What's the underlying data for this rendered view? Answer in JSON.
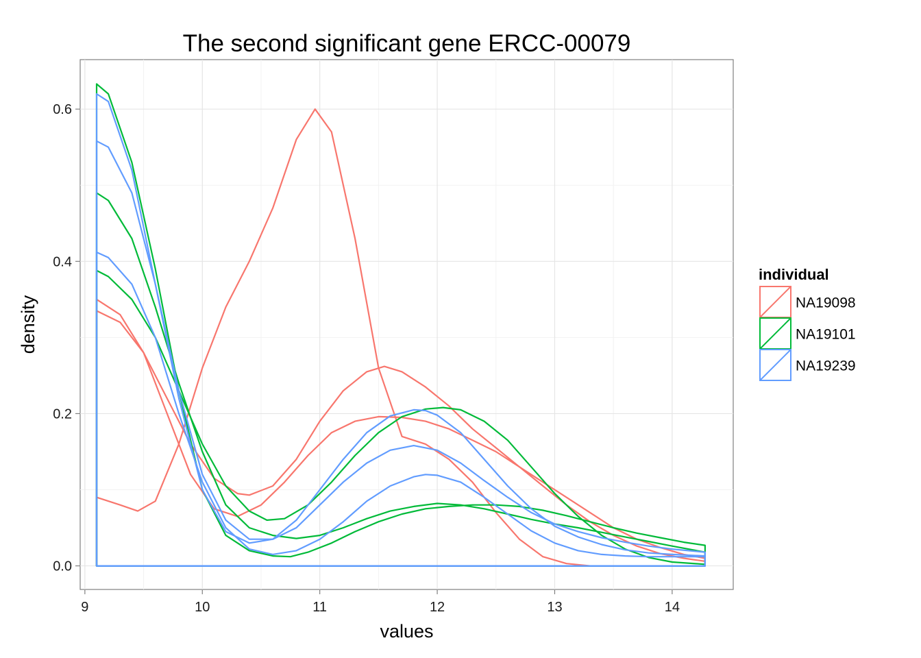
{
  "chart_data": {
    "type": "line",
    "title": "The second significant gene ERCC-00079",
    "xlabel": "values",
    "ylabel": "density",
    "xlim": [
      8.96,
      14.52
    ],
    "ylim": [
      -0.031,
      0.665
    ],
    "x_ticks": [
      9,
      10,
      11,
      12,
      13,
      14
    ],
    "x_tick_labels": [
      "9",
      "10",
      "11",
      "12",
      "13",
      "14"
    ],
    "y_ticks": [
      0.0,
      0.2,
      0.4,
      0.6
    ],
    "y_tick_labels": [
      "0.0",
      "0.2",
      "0.4",
      "0.6"
    ],
    "grid": true,
    "legend": {
      "title": "individual",
      "position": "right",
      "items": [
        {
          "label": "NA19098",
          "color": "#F8766D"
        },
        {
          "label": "NA19101",
          "color": "#00BA38"
        },
        {
          "label": "NA19239",
          "color": "#619CFF"
        }
      ]
    },
    "series": [
      {
        "group": "NA19098",
        "color": "#F8766D",
        "points": [
          [
            9.1,
            0.09
          ],
          [
            9.3,
            0.08
          ],
          [
            9.45,
            0.072
          ],
          [
            9.6,
            0.085
          ],
          [
            9.8,
            0.16
          ],
          [
            10.0,
            0.26
          ],
          [
            10.2,
            0.34
          ],
          [
            10.4,
            0.4
          ],
          [
            10.6,
            0.47
          ],
          [
            10.8,
            0.56
          ],
          [
            10.96,
            0.6
          ],
          [
            11.1,
            0.57
          ],
          [
            11.3,
            0.43
          ],
          [
            11.5,
            0.26
          ],
          [
            11.7,
            0.17
          ],
          [
            11.9,
            0.16
          ],
          [
            12.1,
            0.14
          ],
          [
            12.3,
            0.11
          ],
          [
            12.5,
            0.07
          ],
          [
            12.7,
            0.035
          ],
          [
            12.9,
            0.012
          ],
          [
            13.1,
            0.003
          ],
          [
            13.3,
            0.0
          ],
          [
            14.28,
            0.0
          ]
        ]
      },
      {
        "group": "NA19098",
        "color": "#F8766D",
        "points": [
          [
            9.1,
            0.35
          ],
          [
            9.3,
            0.33
          ],
          [
            9.5,
            0.28
          ],
          [
            9.7,
            0.2
          ],
          [
            9.9,
            0.12
          ],
          [
            10.1,
            0.075
          ],
          [
            10.3,
            0.065
          ],
          [
            10.5,
            0.08
          ],
          [
            10.7,
            0.11
          ],
          [
            10.9,
            0.145
          ],
          [
            11.1,
            0.175
          ],
          [
            11.3,
            0.19
          ],
          [
            11.5,
            0.196
          ],
          [
            11.7,
            0.195
          ],
          [
            11.9,
            0.19
          ],
          [
            12.1,
            0.18
          ],
          [
            12.3,
            0.165
          ],
          [
            12.5,
            0.15
          ],
          [
            12.7,
            0.13
          ],
          [
            12.9,
            0.11
          ],
          [
            13.1,
            0.09
          ],
          [
            13.3,
            0.07
          ],
          [
            13.5,
            0.05
          ],
          [
            13.7,
            0.035
          ],
          [
            13.9,
            0.024
          ],
          [
            14.1,
            0.015
          ],
          [
            14.28,
            0.01
          ]
        ]
      },
      {
        "group": "NA19098",
        "color": "#F8766D",
        "points": [
          [
            9.1,
            0.335
          ],
          [
            9.3,
            0.32
          ],
          [
            9.5,
            0.28
          ],
          [
            9.7,
            0.22
          ],
          [
            9.9,
            0.16
          ],
          [
            10.1,
            0.115
          ],
          [
            10.3,
            0.095
          ],
          [
            10.4,
            0.093
          ],
          [
            10.6,
            0.105
          ],
          [
            10.8,
            0.14
          ],
          [
            11.0,
            0.19
          ],
          [
            11.2,
            0.23
          ],
          [
            11.4,
            0.255
          ],
          [
            11.55,
            0.262
          ],
          [
            11.7,
            0.255
          ],
          [
            11.9,
            0.235
          ],
          [
            12.1,
            0.21
          ],
          [
            12.3,
            0.18
          ],
          [
            12.5,
            0.155
          ],
          [
            12.7,
            0.13
          ],
          [
            12.9,
            0.105
          ],
          [
            13.1,
            0.08
          ],
          [
            13.3,
            0.058
          ],
          [
            13.5,
            0.04
          ],
          [
            13.7,
            0.026
          ],
          [
            13.9,
            0.016
          ],
          [
            14.1,
            0.01
          ],
          [
            14.28,
            0.006
          ]
        ]
      },
      {
        "group": "NA19101",
        "color": "#00BA38",
        "points": [
          [
            9.1,
            0.633
          ],
          [
            9.2,
            0.62
          ],
          [
            9.4,
            0.53
          ],
          [
            9.6,
            0.39
          ],
          [
            9.8,
            0.23
          ],
          [
            10.0,
            0.1
          ],
          [
            10.2,
            0.04
          ],
          [
            10.4,
            0.02
          ],
          [
            10.6,
            0.013
          ],
          [
            10.75,
            0.012
          ],
          [
            10.9,
            0.018
          ],
          [
            11.1,
            0.03
          ],
          [
            11.3,
            0.045
          ],
          [
            11.5,
            0.058
          ],
          [
            11.7,
            0.068
          ],
          [
            11.9,
            0.075
          ],
          [
            12.1,
            0.078
          ],
          [
            12.3,
            0.08
          ],
          [
            12.5,
            0.08
          ],
          [
            12.7,
            0.078
          ],
          [
            12.9,
            0.073
          ],
          [
            13.1,
            0.066
          ],
          [
            13.3,
            0.058
          ],
          [
            13.5,
            0.05
          ],
          [
            13.7,
            0.043
          ],
          [
            13.9,
            0.037
          ],
          [
            14.1,
            0.031
          ],
          [
            14.28,
            0.027
          ]
        ]
      },
      {
        "group": "NA19101",
        "color": "#00BA38",
        "points": [
          [
            9.1,
            0.49
          ],
          [
            9.2,
            0.48
          ],
          [
            9.4,
            0.43
          ],
          [
            9.6,
            0.34
          ],
          [
            9.8,
            0.24
          ],
          [
            10.0,
            0.15
          ],
          [
            10.2,
            0.08
          ],
          [
            10.4,
            0.05
          ],
          [
            10.6,
            0.04
          ],
          [
            10.8,
            0.036
          ],
          [
            11.0,
            0.04
          ],
          [
            11.2,
            0.05
          ],
          [
            11.4,
            0.062
          ],
          [
            11.6,
            0.072
          ],
          [
            11.8,
            0.078
          ],
          [
            12.0,
            0.082
          ],
          [
            12.2,
            0.08
          ],
          [
            12.4,
            0.075
          ],
          [
            12.6,
            0.068
          ],
          [
            12.8,
            0.061
          ],
          [
            13.0,
            0.055
          ],
          [
            13.2,
            0.05
          ],
          [
            13.4,
            0.044
          ],
          [
            13.6,
            0.038
          ],
          [
            13.8,
            0.032
          ],
          [
            14.0,
            0.026
          ],
          [
            14.28,
            0.018
          ]
        ]
      },
      {
        "group": "NA19101",
        "color": "#00BA38",
        "points": [
          [
            9.1,
            0.388
          ],
          [
            9.2,
            0.38
          ],
          [
            9.4,
            0.35
          ],
          [
            9.6,
            0.3
          ],
          [
            9.8,
            0.23
          ],
          [
            10.0,
            0.16
          ],
          [
            10.2,
            0.105
          ],
          [
            10.4,
            0.072
          ],
          [
            10.55,
            0.06
          ],
          [
            10.7,
            0.062
          ],
          [
            10.9,
            0.08
          ],
          [
            11.1,
            0.11
          ],
          [
            11.3,
            0.145
          ],
          [
            11.5,
            0.175
          ],
          [
            11.7,
            0.196
          ],
          [
            11.9,
            0.206
          ],
          [
            12.05,
            0.208
          ],
          [
            12.2,
            0.205
          ],
          [
            12.4,
            0.19
          ],
          [
            12.6,
            0.165
          ],
          [
            12.8,
            0.13
          ],
          [
            13.0,
            0.095
          ],
          [
            13.2,
            0.065
          ],
          [
            13.4,
            0.04
          ],
          [
            13.6,
            0.022
          ],
          [
            13.8,
            0.011
          ],
          [
            14.0,
            0.005
          ],
          [
            14.28,
            0.002
          ]
        ]
      },
      {
        "group": "NA19239",
        "color": "#619CFF",
        "points": [
          [
            9.1,
            0.62
          ],
          [
            9.2,
            0.61
          ],
          [
            9.4,
            0.52
          ],
          [
            9.6,
            0.37
          ],
          [
            9.8,
            0.22
          ],
          [
            10.0,
            0.1
          ],
          [
            10.2,
            0.045
          ],
          [
            10.4,
            0.03
          ],
          [
            10.6,
            0.035
          ],
          [
            10.8,
            0.06
          ],
          [
            11.0,
            0.1
          ],
          [
            11.2,
            0.14
          ],
          [
            11.4,
            0.175
          ],
          [
            11.6,
            0.197
          ],
          [
            11.8,
            0.205
          ],
          [
            11.9,
            0.204
          ],
          [
            12.0,
            0.198
          ],
          [
            12.2,
            0.175
          ],
          [
            12.4,
            0.14
          ],
          [
            12.6,
            0.105
          ],
          [
            12.8,
            0.075
          ],
          [
            13.0,
            0.052
          ],
          [
            13.2,
            0.038
          ],
          [
            13.4,
            0.028
          ],
          [
            13.6,
            0.021
          ],
          [
            13.8,
            0.017
          ],
          [
            14.0,
            0.015
          ],
          [
            14.28,
            0.013
          ]
        ]
      },
      {
        "group": "NA19239",
        "color": "#619CFF",
        "points": [
          [
            9.1,
            0.558
          ],
          [
            9.2,
            0.55
          ],
          [
            9.4,
            0.49
          ],
          [
            9.6,
            0.37
          ],
          [
            9.8,
            0.23
          ],
          [
            10.0,
            0.12
          ],
          [
            10.2,
            0.06
          ],
          [
            10.4,
            0.035
          ],
          [
            10.6,
            0.035
          ],
          [
            10.8,
            0.05
          ],
          [
            11.0,
            0.08
          ],
          [
            11.2,
            0.11
          ],
          [
            11.4,
            0.135
          ],
          [
            11.6,
            0.152
          ],
          [
            11.8,
            0.158
          ],
          [
            12.0,
            0.152
          ],
          [
            12.2,
            0.135
          ],
          [
            12.4,
            0.112
          ],
          [
            12.6,
            0.09
          ],
          [
            12.8,
            0.07
          ],
          [
            13.0,
            0.055
          ],
          [
            13.2,
            0.045
          ],
          [
            13.4,
            0.037
          ],
          [
            13.6,
            0.031
          ],
          [
            13.8,
            0.026
          ],
          [
            14.0,
            0.022
          ],
          [
            14.28,
            0.018
          ]
        ]
      },
      {
        "group": "NA19239",
        "color": "#619CFF",
        "points": [
          [
            9.1,
            0.412
          ],
          [
            9.2,
            0.405
          ],
          [
            9.4,
            0.37
          ],
          [
            9.6,
            0.3
          ],
          [
            9.8,
            0.2
          ],
          [
            10.0,
            0.11
          ],
          [
            10.2,
            0.05
          ],
          [
            10.4,
            0.022
          ],
          [
            10.6,
            0.015
          ],
          [
            10.8,
            0.02
          ],
          [
            11.0,
            0.035
          ],
          [
            11.2,
            0.058
          ],
          [
            11.4,
            0.085
          ],
          [
            11.6,
            0.105
          ],
          [
            11.8,
            0.117
          ],
          [
            11.9,
            0.12
          ],
          [
            12.0,
            0.119
          ],
          [
            12.2,
            0.11
          ],
          [
            12.4,
            0.09
          ],
          [
            12.6,
            0.068
          ],
          [
            12.8,
            0.046
          ],
          [
            13.0,
            0.03
          ],
          [
            13.2,
            0.02
          ],
          [
            13.4,
            0.015
          ],
          [
            13.6,
            0.013
          ],
          [
            13.8,
            0.012
          ],
          [
            14.0,
            0.012
          ],
          [
            14.28,
            0.012
          ]
        ]
      }
    ]
  }
}
